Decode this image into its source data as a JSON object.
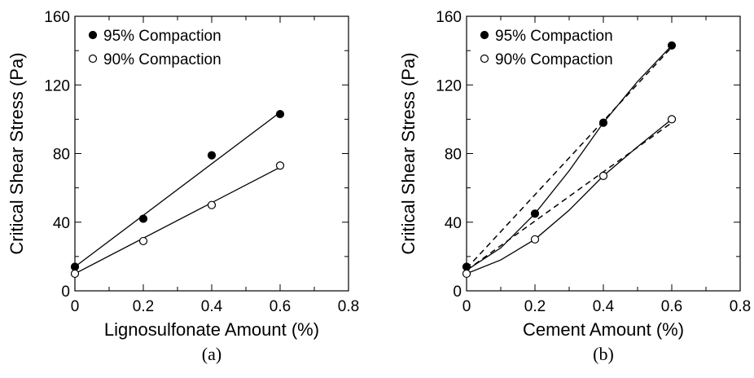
{
  "chart_data": [
    {
      "type": "scatter",
      "panel_label": "(a)",
      "xlabel": "Lignosulfonate Amount (%)",
      "ylabel": "Critical Shear Stress (Pa)",
      "xlim": [
        0,
        0.8
      ],
      "ylim": [
        0,
        160
      ],
      "xticks": [
        "0",
        "0.2",
        "0.4",
        "0.6",
        "0.8"
      ],
      "yticks": [
        "0",
        "40",
        "80",
        "120",
        "160"
      ],
      "grid": false,
      "legend_position": "top-left",
      "series": [
        {
          "name": "95% Compaction",
          "marker": "filled-circle",
          "x": [
            0,
            0.2,
            0.4,
            0.6
          ],
          "y": [
            14,
            42,
            79,
            103
          ],
          "fits": [
            {
              "style": "solid",
              "x": [
                0,
                0.6
              ],
              "y": [
                14,
                104
              ]
            }
          ]
        },
        {
          "name": "90% Compaction",
          "marker": "open-circle",
          "x": [
            0,
            0.2,
            0.4,
            0.6
          ],
          "y": [
            10,
            29,
            50,
            73
          ],
          "fits": [
            {
              "style": "solid",
              "x": [
                0,
                0.6
              ],
              "y": [
                10,
                72
              ]
            }
          ]
        }
      ]
    },
    {
      "type": "scatter",
      "panel_label": "(b)",
      "xlabel": "Cement Amount (%)",
      "ylabel": "Critical Shear Stress (Pa)",
      "xlim": [
        0,
        0.8
      ],
      "ylim": [
        0,
        160
      ],
      "xticks": [
        "0",
        "0.2",
        "0.4",
        "0.6",
        "0.8"
      ],
      "yticks": [
        "0",
        "40",
        "80",
        "120",
        "160"
      ],
      "grid": false,
      "legend_position": "top-left",
      "series": [
        {
          "name": "95% Compaction",
          "marker": "filled-circle",
          "x": [
            0,
            0.2,
            0.4,
            0.6
          ],
          "y": [
            14,
            45,
            98,
            143
          ],
          "fits": [
            {
              "style": "dashed",
              "x": [
                0,
                0.6
              ],
              "y": [
                13,
                142
              ]
            },
            {
              "style": "solid",
              "x": [
                0,
                0.1,
                0.2,
                0.3,
                0.4,
                0.5,
                0.6
              ],
              "y": [
                12,
                25,
                45,
                70,
                98,
                122,
                143
              ]
            }
          ]
        },
        {
          "name": "90% Compaction",
          "marker": "open-circle",
          "x": [
            0,
            0.2,
            0.4,
            0.6
          ],
          "y": [
            10,
            30,
            67,
            100
          ],
          "fits": [
            {
              "style": "dashed",
              "x": [
                0,
                0.6
              ],
              "y": [
                12,
                98
              ]
            },
            {
              "style": "solid",
              "x": [
                0,
                0.1,
                0.2,
                0.3,
                0.4,
                0.5,
                0.6
              ],
              "y": [
                10,
                18,
                30,
                47,
                67,
                84,
                100
              ]
            }
          ]
        }
      ]
    }
  ]
}
